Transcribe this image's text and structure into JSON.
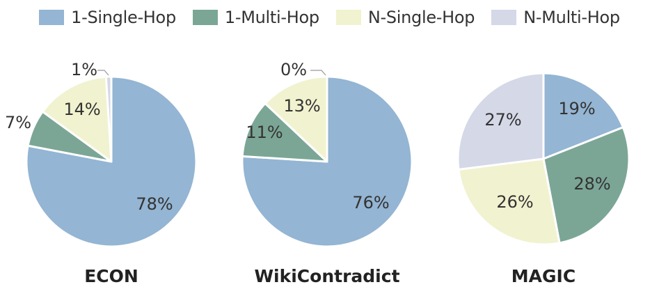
{
  "legend": [
    {
      "name": "1-Single-Hop",
      "color": "#94b5d3"
    },
    {
      "name": "1-Multi-Hop",
      "color": "#7ba696"
    },
    {
      "name": "N-Single-Hop",
      "color": "#f1f2cf"
    },
    {
      "name": "N-Multi-Hop",
      "color": "#d4d8e7"
    }
  ],
  "chart_data": [
    {
      "type": "pie",
      "title": "ECON",
      "labels": [
        "1-Single-Hop",
        "1-Multi-Hop",
        "N-Single-Hop",
        "N-Multi-Hop"
      ],
      "values": [
        78,
        7,
        14,
        1
      ],
      "value_labels": [
        "78%",
        "7%",
        "14%",
        "1%"
      ],
      "colors": [
        "#94b5d3",
        "#7ba696",
        "#f1f2cf",
        "#d4d8e7"
      ]
    },
    {
      "type": "pie",
      "title": "WikiContradict",
      "labels": [
        "1-Single-Hop",
        "1-Multi-Hop",
        "N-Single-Hop",
        "N-Multi-Hop"
      ],
      "values": [
        76,
        11,
        13,
        0
      ],
      "value_labels": [
        "76%",
        "11%",
        "13%",
        "0%"
      ],
      "colors": [
        "#94b5d3",
        "#7ba696",
        "#f1f2cf",
        "#d4d8e7"
      ]
    },
    {
      "type": "pie",
      "title": "MAGIC",
      "labels": [
        "1-Single-Hop",
        "1-Multi-Hop",
        "N-Single-Hop",
        "N-Multi-Hop"
      ],
      "values": [
        19,
        28,
        26,
        27
      ],
      "value_labels": [
        "19%",
        "28%",
        "26%",
        "27%"
      ],
      "colors": [
        "#94b5d3",
        "#7ba696",
        "#f1f2cf",
        "#d4d8e7"
      ]
    }
  ]
}
